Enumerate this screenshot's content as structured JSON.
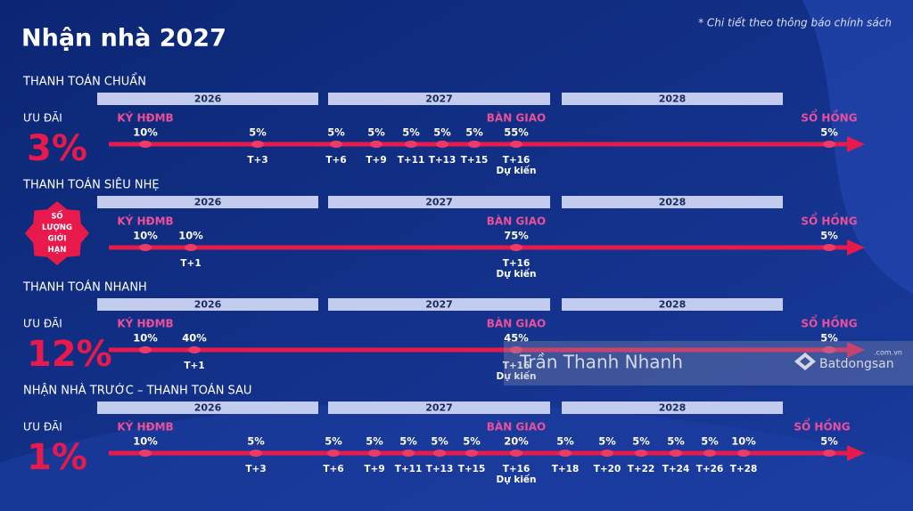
{
  "title": "Nhận nhà 2027",
  "note": "* Chi tiết theo thông báo chính sách",
  "years": [
    "2026",
    "2027",
    "2028"
  ],
  "milestones": [
    "KÝ HĐMB",
    "BÀN GIAO",
    "SỔ HỒNG"
  ],
  "sections": [
    {
      "name": "THANH TOÁN CHUẨN",
      "discount_label": "ƯU ĐÃI",
      "discount": "3%",
      "points": [
        {
          "pct": "10%"
        },
        {
          "pct": "5%",
          "time": "T+3"
        },
        {
          "pct": "5%",
          "time": "T+6"
        },
        {
          "pct": "5%",
          "time": "T+9"
        },
        {
          "pct": "5%",
          "time": "T+11"
        },
        {
          "pct": "5%",
          "time": "T+13"
        },
        {
          "pct": "5%",
          "time": "T+15"
        },
        {
          "pct": "55%",
          "time": "T+16",
          "note": "Dự kiến"
        },
        {
          "pct": "5%"
        }
      ]
    },
    {
      "name": "THANH TOÁN SIÊU NHẸ",
      "badge": [
        "SỐ",
        "LƯỢNG",
        "GIỚI",
        "HẠN"
      ],
      "points": [
        {
          "pct": "10%"
        },
        {
          "pct": "10%",
          "time": "T+1"
        },
        {
          "pct": "75%",
          "time": "T+16",
          "note": "Dự kiến"
        },
        {
          "pct": "5%"
        }
      ]
    },
    {
      "name": "THANH TOÁN NHANH",
      "discount_label": "ƯU ĐÃI",
      "discount": "12%",
      "points": [
        {
          "pct": "10%"
        },
        {
          "pct": "40%",
          "time": "T+1"
        },
        {
          "pct": "45%",
          "time": "T+16",
          "note": "Dự kiến"
        },
        {
          "pct": "5%"
        }
      ]
    },
    {
      "name": "NHẬN NHÀ TRƯỚC – THANH TOÁN SAU",
      "discount_label": "ƯU ĐÃI",
      "discount": "1%",
      "points": [
        {
          "pct": "10%"
        },
        {
          "pct": "5%",
          "time": "T+3"
        },
        {
          "pct": "5%",
          "time": "T+6"
        },
        {
          "pct": "5%",
          "time": "T+9"
        },
        {
          "pct": "5%",
          "time": "T+11"
        },
        {
          "pct": "5%",
          "time": "T+13"
        },
        {
          "pct": "5%",
          "time": "T+15"
        },
        {
          "pct": "20%",
          "time": "T+16",
          "note": "Dự kiến"
        },
        {
          "pct": "5%",
          "time": "T+18"
        },
        {
          "pct": "5%",
          "time": "T+20"
        },
        {
          "pct": "5%",
          "time": "T+22"
        },
        {
          "pct": "5%",
          "time": "T+24"
        },
        {
          "pct": "5%",
          "time": "T+26"
        },
        {
          "pct": "10%",
          "time": "T+28"
        },
        {
          "pct": "5%"
        }
      ]
    }
  ],
  "watermark": {
    "author": "Trần Thanh Nhanh",
    "brand": "Batdongsan",
    "domain": ".com.vn"
  }
}
